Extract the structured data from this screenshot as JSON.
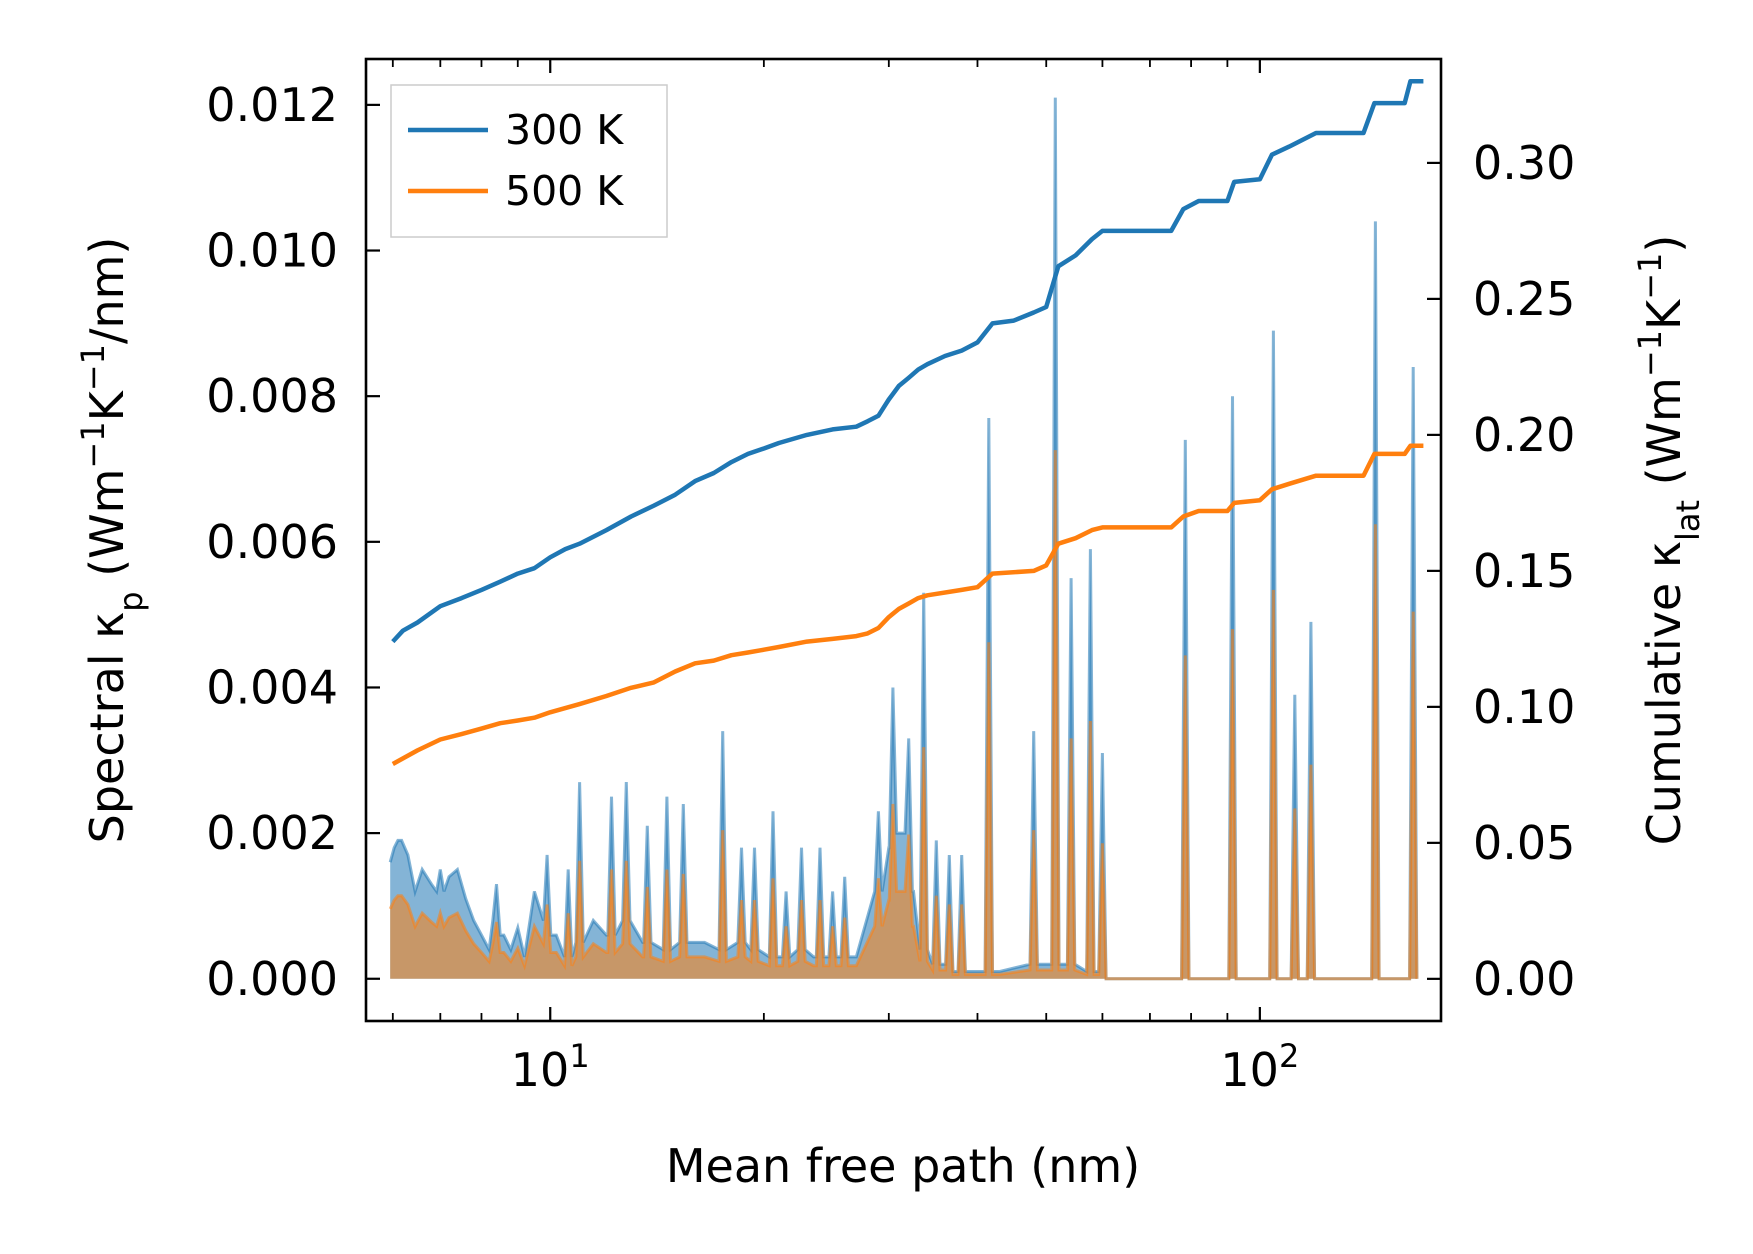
{
  "chart_data": {
    "type": "line",
    "xscale": "log",
    "xlim": [
      5.5,
      180
    ],
    "xlabel": "Mean free path (nm)",
    "x_ticks": [
      {
        "value": 10,
        "label_base": "10",
        "label_exp": "1"
      },
      {
        "value": 100,
        "label_base": "10",
        "label_exp": "2"
      }
    ],
    "left_axis": {
      "label_main": "Spectral κ",
      "label_sub": "p",
      "label_unit_a": " (Wm",
      "label_sup1": "−1",
      "label_unit_b": "K",
      "label_sup2": "−1",
      "label_unit_c": "/nm)",
      "ylim": [
        -0.00058,
        0.01263
      ],
      "ticks": [
        0.0,
        0.002,
        0.004,
        0.006,
        0.008,
        0.01,
        0.012
      ],
      "tick_labels": [
        "0.000",
        "0.002",
        "0.004",
        "0.006",
        "0.008",
        "0.010",
        "0.012"
      ]
    },
    "right_axis": {
      "label_main": "Cumulative κ",
      "label_sub": "lat",
      "label_unit_a": " (Wm",
      "label_sup1": "−1",
      "label_unit_b": "K",
      "label_sup2": "−1",
      "label_unit_c": ")",
      "ylim": [
        -0.0155,
        0.3382
      ],
      "ticks": [
        0.0,
        0.05,
        0.1,
        0.15,
        0.2,
        0.25,
        0.3
      ],
      "tick_labels": [
        "0.00",
        "0.05",
        "0.10",
        "0.15",
        "0.20",
        "0.25",
        "0.30"
      ]
    },
    "legend": {
      "position": "top-left",
      "entries": [
        {
          "label": "300 K",
          "color": "#1f77b4"
        },
        {
          "label": "500 K",
          "color": "#ff7f0e"
        }
      ]
    },
    "series": [
      {
        "name": "300 K",
        "color": "#1f77b4",
        "axis": "right",
        "cumulative": [
          [
            6.0,
            0.124
          ],
          [
            6.2,
            0.128
          ],
          [
            6.5,
            0.131
          ],
          [
            7.0,
            0.137
          ],
          [
            7.5,
            0.14
          ],
          [
            8.0,
            0.143
          ],
          [
            8.5,
            0.146
          ],
          [
            9.0,
            0.149
          ],
          [
            9.5,
            0.151
          ],
          [
            10.0,
            0.155
          ],
          [
            10.5,
            0.158
          ],
          [
            11.0,
            0.16
          ],
          [
            12.0,
            0.165
          ],
          [
            13.0,
            0.17
          ],
          [
            14.0,
            0.174
          ],
          [
            15.0,
            0.178
          ],
          [
            16.0,
            0.183
          ],
          [
            17.0,
            0.186
          ],
          [
            18.0,
            0.19
          ],
          [
            19.0,
            0.193
          ],
          [
            20.0,
            0.195
          ],
          [
            21.0,
            0.197
          ],
          [
            23.0,
            0.2
          ],
          [
            25.0,
            0.202
          ],
          [
            27.0,
            0.203
          ],
          [
            28.0,
            0.205
          ],
          [
            29.0,
            0.207
          ],
          [
            30.0,
            0.213
          ],
          [
            31.0,
            0.218
          ],
          [
            32.0,
            0.221
          ],
          [
            33.0,
            0.224
          ],
          [
            34.0,
            0.226
          ],
          [
            36.0,
            0.229
          ],
          [
            38.0,
            0.231
          ],
          [
            40.0,
            0.234
          ],
          [
            42.0,
            0.241
          ],
          [
            45.0,
            0.242
          ],
          [
            48.0,
            0.245
          ],
          [
            50.0,
            0.247
          ],
          [
            52.0,
            0.262
          ],
          [
            55.0,
            0.266
          ],
          [
            58.0,
            0.272
          ],
          [
            60.0,
            0.275
          ],
          [
            65.0,
            0.275
          ],
          [
            75.0,
            0.275
          ],
          [
            78.0,
            0.283
          ],
          [
            82.0,
            0.286
          ],
          [
            90.0,
            0.286
          ],
          [
            92.0,
            0.293
          ],
          [
            100.0,
            0.294
          ],
          [
            104.0,
            0.303
          ],
          [
            110.0,
            0.306
          ],
          [
            120.0,
            0.311
          ],
          [
            140.0,
            0.311
          ],
          [
            145.0,
            0.322
          ],
          [
            160.0,
            0.322
          ],
          [
            163.0,
            0.33
          ],
          [
            170.0,
            0.33
          ]
        ]
      },
      {
        "name": "500 K",
        "color": "#ff7f0e",
        "axis": "right",
        "cumulative": [
          [
            6.0,
            0.079
          ],
          [
            6.5,
            0.084
          ],
          [
            7.0,
            0.088
          ],
          [
            7.5,
            0.09
          ],
          [
            8.0,
            0.092
          ],
          [
            8.5,
            0.094
          ],
          [
            9.0,
            0.095
          ],
          [
            9.5,
            0.096
          ],
          [
            10.0,
            0.098
          ],
          [
            11.0,
            0.101
          ],
          [
            12.0,
            0.104
          ],
          [
            13.0,
            0.107
          ],
          [
            14.0,
            0.109
          ],
          [
            15.0,
            0.113
          ],
          [
            16.0,
            0.116
          ],
          [
            17.0,
            0.117
          ],
          [
            18.0,
            0.119
          ],
          [
            19.0,
            0.12
          ],
          [
            20.0,
            0.121
          ],
          [
            21.0,
            0.122
          ],
          [
            23.0,
            0.124
          ],
          [
            25.0,
            0.125
          ],
          [
            27.0,
            0.126
          ],
          [
            28.0,
            0.127
          ],
          [
            29.0,
            0.129
          ],
          [
            30.0,
            0.133
          ],
          [
            31.0,
            0.136
          ],
          [
            32.0,
            0.138
          ],
          [
            33.0,
            0.14
          ],
          [
            34.0,
            0.141
          ],
          [
            38.0,
            0.143
          ],
          [
            40.0,
            0.144
          ],
          [
            42.0,
            0.149
          ],
          [
            48.0,
            0.15
          ],
          [
            50.0,
            0.152
          ],
          [
            52.0,
            0.16
          ],
          [
            55.0,
            0.162
          ],
          [
            58.0,
            0.165
          ],
          [
            60.0,
            0.166
          ],
          [
            65.0,
            0.166
          ],
          [
            75.0,
            0.166
          ],
          [
            78.0,
            0.17
          ],
          [
            82.0,
            0.172
          ],
          [
            90.0,
            0.172
          ],
          [
            92.0,
            0.175
          ],
          [
            100.0,
            0.176
          ],
          [
            104.0,
            0.18
          ],
          [
            110.0,
            0.182
          ],
          [
            120.0,
            0.185
          ],
          [
            140.0,
            0.185
          ],
          [
            145.0,
            0.193
          ],
          [
            160.0,
            0.193
          ],
          [
            163.0,
            0.196
          ],
          [
            170.0,
            0.196
          ]
        ],
        "spectral_scale": 0.6
      }
    ],
    "spectral_300K": {
      "fill_color": "#1f77b4",
      "baseline": [
        [
          5.95,
          0.0016
        ],
        [
          6.05,
          0.0018
        ],
        [
          6.15,
          0.0019
        ],
        [
          6.3,
          0.0017
        ],
        [
          6.45,
          0.0012
        ],
        [
          6.6,
          0.0015
        ],
        [
          6.8,
          0.0013
        ],
        [
          7.0,
          0.0012
        ],
        [
          7.2,
          0.0014
        ],
        [
          7.4,
          0.0015
        ],
        [
          7.6,
          0.0011
        ],
        [
          7.8,
          0.0008
        ],
        [
          8.0,
          0.0006
        ],
        [
          8.2,
          0.0004
        ],
        [
          8.4,
          0.0008
        ],
        [
          8.6,
          0.0006
        ],
        [
          8.8,
          0.0004
        ],
        [
          9.0,
          0.0007
        ],
        [
          9.2,
          0.0003
        ],
        [
          9.5,
          0.0012
        ],
        [
          9.8,
          0.0008
        ],
        [
          10.2,
          0.0006
        ],
        [
          10.6,
          0.0003
        ],
        [
          11.0,
          0.0005
        ],
        [
          11.5,
          0.0008
        ],
        [
          12.0,
          0.0006
        ],
        [
          12.8,
          0.0008
        ],
        [
          13.5,
          0.0005
        ],
        [
          14.5,
          0.0004
        ],
        [
          15.5,
          0.0005
        ],
        [
          16.5,
          0.0005
        ],
        [
          17.5,
          0.0004
        ],
        [
          18.5,
          0.0005
        ],
        [
          19.5,
          0.0004
        ],
        [
          20.5,
          0.0003
        ],
        [
          21.5,
          0.0003
        ],
        [
          22.5,
          0.0004
        ],
        [
          23.5,
          0.0003
        ],
        [
          25.0,
          0.0003
        ],
        [
          27.0,
          0.0003
        ],
        [
          29.0,
          0.0012
        ],
        [
          30.0,
          0.0018
        ],
        [
          31.0,
          0.002
        ],
        [
          32.5,
          0.0012
        ],
        [
          33.5,
          0.0004
        ],
        [
          35.0,
          0.0002
        ],
        [
          38.0,
          0.0001
        ],
        [
          43.0,
          0.0001
        ],
        [
          48.0,
          0.0002
        ],
        [
          53.0,
          0.0002
        ],
        [
          58.0,
          0.0001
        ],
        [
          62.0,
          0.0
        ],
        [
          180.0,
          0.0
        ]
      ],
      "spikes": [
        [
          6.1,
          0.0019
        ],
        [
          7.0,
          0.0015
        ],
        [
          8.4,
          0.0013
        ],
        [
          9.9,
          0.0017
        ],
        [
          10.6,
          0.0015
        ],
        [
          11.0,
          0.0027
        ],
        [
          12.2,
          0.0025
        ],
        [
          12.8,
          0.0027
        ],
        [
          13.7,
          0.0021
        ],
        [
          14.6,
          0.0025
        ],
        [
          15.4,
          0.0024
        ],
        [
          17.5,
          0.0034
        ],
        [
          18.6,
          0.0018
        ],
        [
          19.4,
          0.0018
        ],
        [
          20.6,
          0.0023
        ],
        [
          21.5,
          0.0012
        ],
        [
          22.6,
          0.0018
        ],
        [
          24.0,
          0.0018
        ],
        [
          25.0,
          0.0012
        ],
        [
          26.0,
          0.0014
        ],
        [
          29.0,
          0.0023
        ],
        [
          30.4,
          0.004
        ],
        [
          32.0,
          0.0033
        ],
        [
          33.6,
          0.0053
        ],
        [
          35.0,
          0.0019
        ],
        [
          36.5,
          0.0017
        ],
        [
          38.0,
          0.0017
        ],
        [
          41.5,
          0.0077
        ],
        [
          48.0,
          0.0034
        ],
        [
          51.5,
          0.0121
        ],
        [
          54.2,
          0.0055
        ],
        [
          57.7,
          0.0059
        ],
        [
          60.0,
          0.0031
        ],
        [
          78.5,
          0.0074
        ],
        [
          91.5,
          0.008
        ],
        [
          104.5,
          0.0089
        ],
        [
          112.0,
          0.0039
        ],
        [
          118.0,
          0.0049
        ],
        [
          145.5,
          0.0104
        ],
        [
          164.5,
          0.0084
        ]
      ]
    }
  }
}
